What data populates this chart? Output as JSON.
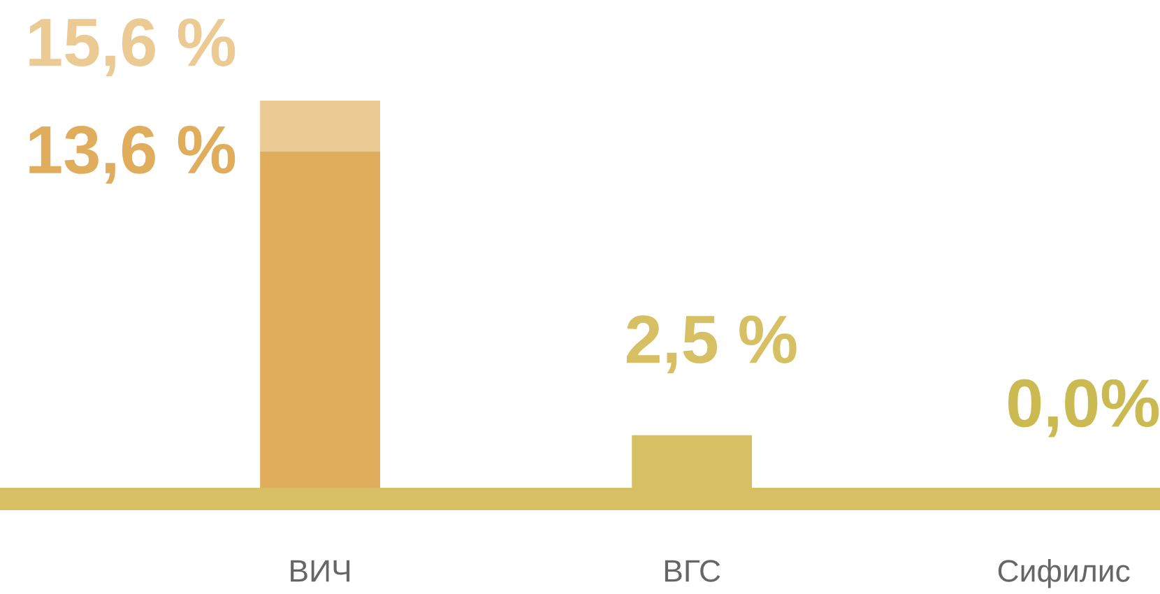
{
  "chart_data": {
    "type": "bar",
    "stacked": true,
    "categories": [
      "ВИЧ",
      "ВГС",
      "Сифилис"
    ],
    "series": [
      {
        "colors": [
          "#e0ad5c",
          "#d7bf63",
          "#cbba52"
        ],
        "values": [
          13.6,
          2.5,
          0.0
        ],
        "value_labels": [
          null,
          "2,5 %",
          "0,0%"
        ]
      },
      {
        "color": "#ecca93",
        "values": [
          2.0,
          null,
          null
        ]
      }
    ],
    "totals": [
      "15,6 %",
      null,
      null
    ],
    "annotations": [
      {
        "text": "13,6 %",
        "x": "ВИЧ",
        "y": 13.6
      }
    ]
  }
}
